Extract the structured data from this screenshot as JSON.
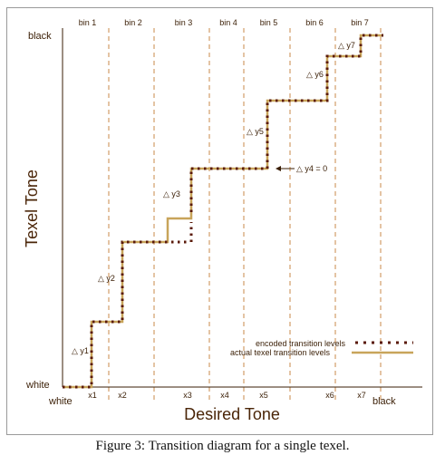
{
  "colors": {
    "axis": "#3a1e05",
    "encoded": "#5a1a0a",
    "actual": "#c8a45a",
    "bin_line": "#c98a4a",
    "text": "#3a1e05"
  },
  "diagram": {
    "y_axis_title": "Texel Tone",
    "x_axis_title": "Desired Tone",
    "y_top_label": "black",
    "y_bottom_label": "white",
    "x_left_label": "white",
    "x_right_label": "black",
    "bins": [
      "bin 1",
      "bin 2",
      "bin 3",
      "bin 4",
      "bin 5",
      "bin 6",
      "bin 7"
    ],
    "x_ticks": [
      "x1",
      "x2",
      "x3",
      "x4",
      "x5",
      "x6",
      "x7"
    ],
    "deltas": [
      "△ y1",
      "△ y2",
      "△ y3",
      "△ y4 = 0",
      "△ y5",
      "△ y6",
      "△ y7"
    ],
    "legend": {
      "encoded": "encoded transition levels",
      "actual": "actual texel transition levels"
    }
  },
  "caption": "Figure 3: Transition diagram for a single texel."
}
